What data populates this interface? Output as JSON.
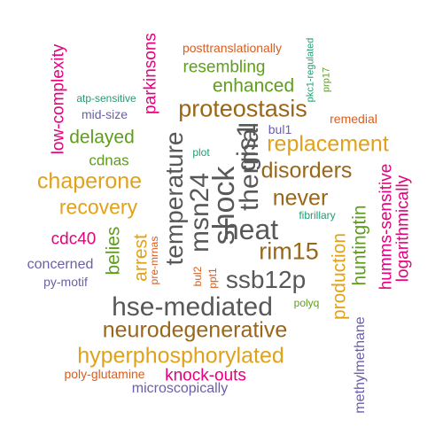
{
  "words": {
    "posttranslationally": "posttranslationally",
    "parkinsons": "parkinsons",
    "resembling": "resembling",
    "pkc1_regulated": "pkc1-regulated",
    "low_complexity": "low-complexity",
    "enhanced": "enhanced",
    "prp17": "prp17",
    "atp_sensitive": "atp-sensitive",
    "proteostasis": "proteostasis",
    "mid_size": "mid-size",
    "remedial": "remedial",
    "bul1": "bul1",
    "delayed": "delayed",
    "replacement": "replacement",
    "temperature": "temperature",
    "gis1": "gis1",
    "cdnas": "cdnas",
    "plot": "plot",
    "disorders": "disorders",
    "chaperone": "chaperone",
    "thermal": "thermal",
    "msn24": "msn24",
    "shock": "shock",
    "never": "never",
    "recovery": "recovery",
    "fibrillary": "fibrillary",
    "humms_sensitive": "humms-sensitive",
    "logarithmically": "logarithmically",
    "huntingtin": "huntingtin",
    "heat": "heat",
    "cdc40": "cdc40",
    "belies": "belies",
    "rim15": "rim15",
    "arrest": "arrest",
    "pre_mrnas": "pre-mrnas",
    "concerned": "concerned",
    "production": "production",
    "py_motif": "py-motif",
    "bul2": "bul2",
    "ssb12p": "ssb12p",
    "ppt1": "ppt1",
    "polyq": "polyq",
    "hse_mediated": "hse-mediated",
    "methylmethane": "methylmethane",
    "neurodegenerative": "neurodegenerative",
    "hyperphosphorylated": "hyperphosphorylated",
    "poly_glutamine": "poly-glutamine",
    "knock_outs": "knock-outs",
    "microscopically": "microscopically"
  },
  "colors": {
    "green": "#5e9e1c",
    "brown": "#99661a",
    "gold": "#e0a21b",
    "gray": "#585858",
    "pink": "#e6007e",
    "orange": "#d85d1e",
    "purple": "#6b60a8",
    "teal": "#1c9e72"
  }
}
